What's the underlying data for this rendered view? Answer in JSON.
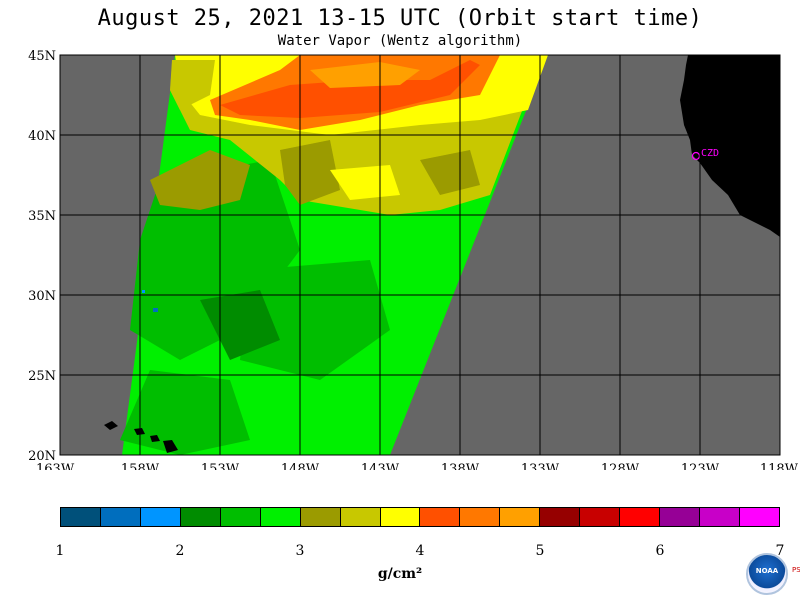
{
  "title": "August 25, 2021  13-15 UTC  (Orbit start time)",
  "subtitle": "Water Vapor (Wentz algorithm)",
  "map": {
    "lat_range": [
      20,
      45
    ],
    "lon_range": [
      -163,
      -118
    ],
    "lat_labels": [
      "45N",
      "40N",
      "35N",
      "30N",
      "25N",
      "20N"
    ],
    "lon_labels": [
      "163W",
      "158W",
      "153W",
      "148W",
      "143W",
      "138W",
      "133W",
      "128W",
      "123W",
      "118W"
    ],
    "station_label": "CZD",
    "colors": {
      "no_data": "#666666",
      "land": "#000000",
      "station": "#ff00ff",
      "grid": "#000000"
    },
    "regions": [
      {
        "name": "upper-yellow-band",
        "level": 3.9
      },
      {
        "name": "orange-core",
        "level": 4.2
      },
      {
        "name": "olive-yellow-middle",
        "level": 3.6
      },
      {
        "name": "bright-green-south",
        "level": 2.8
      },
      {
        "name": "dark-green-west",
        "level": 2.3
      }
    ]
  },
  "colorbar": {
    "colors": [
      "#00507a",
      "#006ebe",
      "#0095ff",
      "#008c00",
      "#00be00",
      "#00f000",
      "#9b9b00",
      "#c8c800",
      "#ffff00",
      "#ff5000",
      "#ff7800",
      "#ffa000",
      "#960000",
      "#c80000",
      "#ff0000",
      "#960096",
      "#c800c8",
      "#ff00ff"
    ],
    "ticks": [
      "1",
      "2",
      "3",
      "4",
      "5",
      "6",
      "7"
    ],
    "units": "g/cm²"
  },
  "logo": {
    "text": "NOAA",
    "side_text": "PSL"
  }
}
